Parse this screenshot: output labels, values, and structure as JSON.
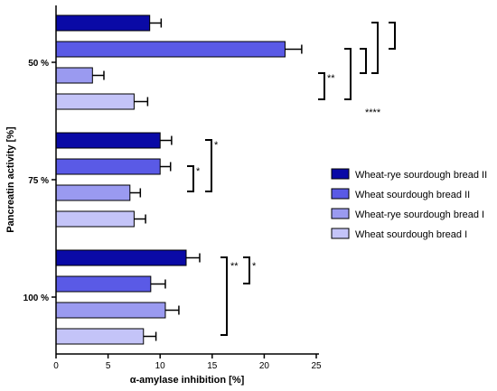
{
  "chart_data": {
    "type": "bar",
    "orientation": "horizontal",
    "xlabel": "α-amylase inhibition [%]",
    "ylabel": "Pancreatin activity [%]",
    "xlim": [
      0,
      25
    ],
    "x_ticks": [
      "0",
      "5",
      "10",
      "15",
      "20",
      "25"
    ],
    "categories": [
      "50 %",
      "75 %",
      "100 %"
    ],
    "series": [
      {
        "name": "Wheat-rye sourdough bread II",
        "color": "#0a0aa6",
        "values": [
          9.0,
          10.0,
          12.5
        ],
        "errors": [
          1.1,
          1.1,
          1.3
        ]
      },
      {
        "name": "Wheat sourdough bread II",
        "color": "#5a5ae6",
        "values": [
          22.0,
          10.0,
          9.1
        ],
        "errors": [
          1.6,
          1.0,
          1.4
        ]
      },
      {
        "name": "Wheat-rye sourdough bread I",
        "color": "#9a9af0",
        "values": [
          3.5,
          7.1,
          10.5
        ],
        "errors": [
          1.1,
          1.0,
          1.3
        ]
      },
      {
        "name": "Wheat sourdough bread I",
        "color": "#c4c4f8",
        "values": [
          7.5,
          7.5,
          8.4
        ],
        "errors": [
          1.3,
          1.1,
          1.2
        ]
      }
    ],
    "legend_position": "right",
    "significance": [
      "**",
      "****",
      "*",
      "*",
      "**",
      "*"
    ]
  }
}
